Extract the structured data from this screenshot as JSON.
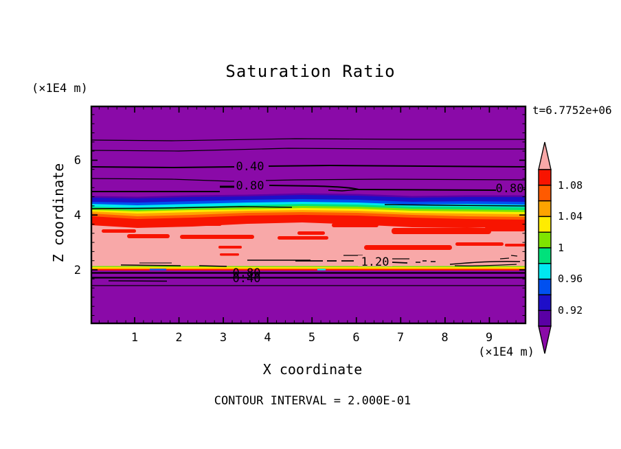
{
  "title": "Saturation Ratio",
  "annotations": {
    "y_unit_top": "(×1E4 m)",
    "x_unit_right": "(×1E4 m)",
    "timestamp": "t=6.7752e+06",
    "footer": "CONTOUR INTERVAL = 2.000E-01"
  },
  "axes": {
    "x_label": "X coordinate",
    "y_label": "Z coordinate",
    "x_ticks": [
      "1",
      "2",
      "3",
      "4",
      "5",
      "6",
      "7",
      "8",
      "9"
    ],
    "y_ticks": [
      "6",
      "4",
      "2"
    ]
  },
  "contour_labels": {
    "c040": "0.40",
    "c080": "0.80",
    "c120": "1.20"
  },
  "colorbar": {
    "labels": [
      "1.08",
      "1.04",
      "1",
      "0.96",
      "0.92"
    ],
    "segment_values_top_to_bottom": [
      "1.08-1.10",
      "1.06-1.08",
      "1.04-1.06",
      "1.02-1.04",
      "1.00-1.02",
      "0.98-1.00",
      "0.96-0.98",
      "0.94-0.96",
      "0.92-0.94",
      "0.90-0.92"
    ],
    "over_value": ">1.10",
    "under_value": "<0.90",
    "over_color": "#F8A8A8",
    "under_color": "#8A0AA8"
  },
  "palette": {
    "purple": "#8A0AA8",
    "indigo": "#5A00A5",
    "navy": "#1E0EC8",
    "blue": "#0050F0",
    "cyan": "#00E8F0",
    "green": "#00E17B",
    "chartreuse": "#7FE400",
    "yellow": "#FFEC00",
    "orange": "#FFA400",
    "orange_red": "#FF5A00",
    "red": "#F81400",
    "pink": "#F8A8A8",
    "line": "#000000"
  },
  "chart_data": {
    "type": "heatmap",
    "subtype": "filled-contour",
    "title": "Saturation Ratio",
    "xlabel": "X coordinate",
    "ylabel": "Z coordinate",
    "x_unit": "(×1E4 m)",
    "y_unit": "(×1E4 m)",
    "x_range": [
      0,
      9.8
    ],
    "z_range": [
      0,
      7.9
    ],
    "x_ticks": [
      1,
      2,
      3,
      4,
      5,
      6,
      7,
      8,
      9
    ],
    "z_ticks": [
      2,
      4,
      6
    ],
    "time_annotation": "t=6.7752e+06",
    "contour_interval": 0.2,
    "labeled_contour_levels": [
      0.4,
      0.8,
      1.2
    ],
    "colorbar_levels": [
      0.9,
      0.92,
      0.94,
      0.96,
      0.98,
      1.0,
      1.02,
      1.04,
      1.06,
      1.08,
      1.1
    ],
    "colorbar_labeled_levels": [
      1.08,
      1.04,
      1.0,
      0.96,
      0.92
    ],
    "grid": false,
    "legend_position": "right-colorbar",
    "field_profile_top_to_bottom": [
      {
        "z_top": 7.9,
        "z_bottom": 4.7,
        "value": "<0.90 rising downward (0.40 contour at z≈5.8, 0.80 contour at z≈4.9)",
        "color": "purple"
      },
      {
        "z_top": 4.7,
        "z_bottom": 4.55,
        "value": "0.90-0.96",
        "color": "indigo/navy/blue"
      },
      {
        "z_top": 4.55,
        "z_bottom": 4.45,
        "value": "0.96-1.00 (1.00 contour fragments)",
        "color": "cyan/green"
      },
      {
        "z_top": 4.45,
        "z_bottom": 4.3,
        "value": "1.00-1.06",
        "color": "chartreuse/yellow/orange"
      },
      {
        "z_top": 4.3,
        "z_bottom": 3.65,
        "value": "1.06-1.10 wavy band",
        "color": "orange-red/red"
      },
      {
        "z_top": 3.65,
        "z_bottom": 2.1,
        "value": ">1.10 with embedded 1.08-1.10 streaks; 1.20 contour at z≈2.3",
        "color": "pink with red streaks"
      },
      {
        "z_top": 2.1,
        "z_bottom": 2.0,
        "value": "sharp drop 1.10→0.90 (thin rainbow band)",
        "color": "chartreuse/yellow/orange/red"
      },
      {
        "z_top": 2.0,
        "z_bottom": 0.0,
        "value": "<0.90 falling downward (0.80 and 0.40 labels overlapped at z≈1.9)",
        "color": "purple"
      }
    ]
  }
}
